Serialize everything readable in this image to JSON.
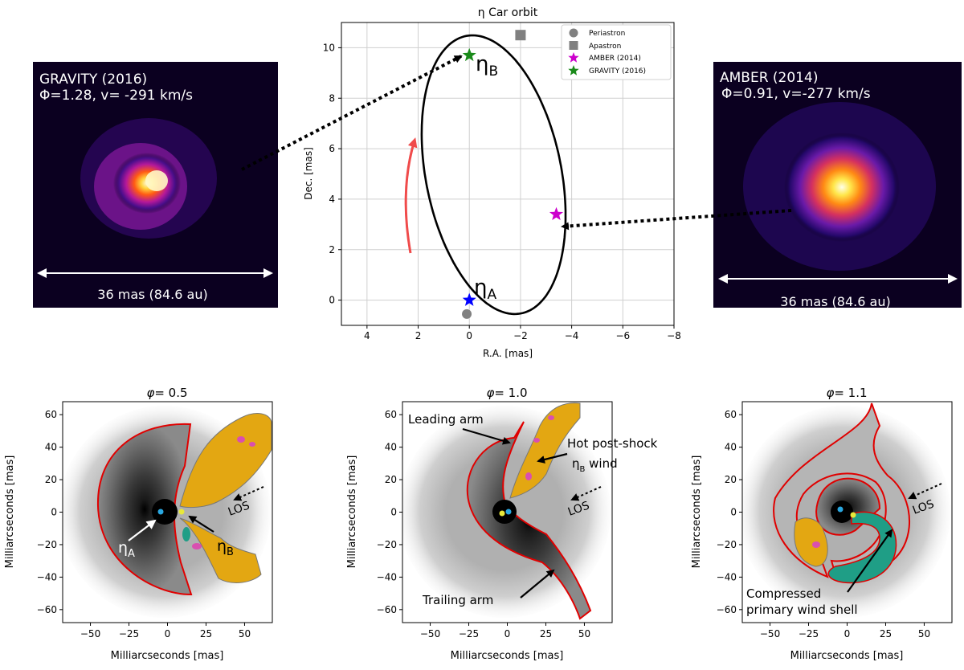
{
  "colors": {
    "orbit": "#000000",
    "grid": "#cfcfcf",
    "periastron": "#808080",
    "apastron": "#808080",
    "amber_star": "#cc00cc",
    "gravity_star": "#1a8a1a",
    "eta_a_star": "#0000ff",
    "motion_arrow": "#f04b4b",
    "contour": "#e00000",
    "hot_wind": "#e3a712",
    "shell": "#1f9e86",
    "knots": "#d94fb0",
    "eta_a_dot": "#2aa7e0",
    "eta_b_dot": "#e8e83a"
  },
  "orbit_panel": {
    "title": "η Car orbit",
    "xlabel": "R.A. [mas]",
    "ylabel": "Dec. [mas]",
    "eta_a_label": "η",
    "eta_a_sub": "A",
    "eta_b_label": "η",
    "eta_b_sub": "B",
    "legend": [
      "Periastron",
      "Apastron",
      "AMBER (2014)",
      "GRAVITY (2016)"
    ],
    "xticks": [
      "4",
      "2",
      "0",
      "−2",
      "−4",
      "−6",
      "−8"
    ],
    "yticks": [
      "0",
      "2",
      "4",
      "6",
      "8",
      "10"
    ]
  },
  "chart_data": {
    "type": "scatter",
    "title": "η Car orbit",
    "xlabel": "R.A. [mas]",
    "ylabel": "Dec. [mas]",
    "xlim": [
      5,
      -8
    ],
    "ylim": [
      -1,
      11
    ],
    "grid": true,
    "legend_position": "top-right",
    "points": [
      {
        "name": "Periastron",
        "x": 0.1,
        "y": -0.55
      },
      {
        "name": "Apastron",
        "x": -2.0,
        "y": 10.5
      },
      {
        "name": "AMBER (2014)",
        "x": -3.4,
        "y": 3.4
      },
      {
        "name": "GRAVITY (2016)",
        "x": 0.0,
        "y": 9.7
      },
      {
        "name": "ηA",
        "x": 0.0,
        "y": 0.0
      }
    ],
    "orbit_ellipse": {
      "center_x": -0.95,
      "center_y": 4.97,
      "semi_major": 5.6,
      "semi_minor": 2.65,
      "tilt_deg": -11
    }
  },
  "gravity_panel": {
    "title_line1": "GRAVITY (2016)",
    "title_line2": "Φ=1.28, v= -291 km/s",
    "scale": "36 mas (84.6 au)"
  },
  "amber_panel": {
    "title_line1": "AMBER (2014)",
    "title_line2": "Φ=0.91, v=-277 km/s",
    "scale": "36 mas (84.6 au)"
  },
  "sim_panels": [
    {
      "phase": "= 0.5",
      "labels": {
        "eta_a": "η",
        "eta_a_sub": "A",
        "eta_b": "η",
        "eta_b_sub": "B",
        "los": "LOS"
      }
    },
    {
      "phase": "= 1.0",
      "labels": {
        "leading": "Leading arm",
        "hot1": "Hot post-shock",
        "hot2_sub": "B",
        "hot2_eta": "η",
        "hot2_rest": " wind",
        "trailing": "Trailing arm",
        "los": "LOS"
      }
    },
    {
      "phase": "= 1.1",
      "labels": {
        "comp1": "Compressed",
        "comp2": "primary wind shell",
        "los": "LOS"
      }
    }
  ],
  "sim_axes": {
    "phi": "φ",
    "xlabel": "Milliarcseconds [mas]",
    "ylabel": "Milliarcseconds [mas]",
    "xticks": [
      "−50",
      "−25",
      "0",
      "25",
      "50"
    ],
    "yticks": [
      "60",
      "40",
      "20",
      "0",
      "−20",
      "−40",
      "−60"
    ]
  }
}
